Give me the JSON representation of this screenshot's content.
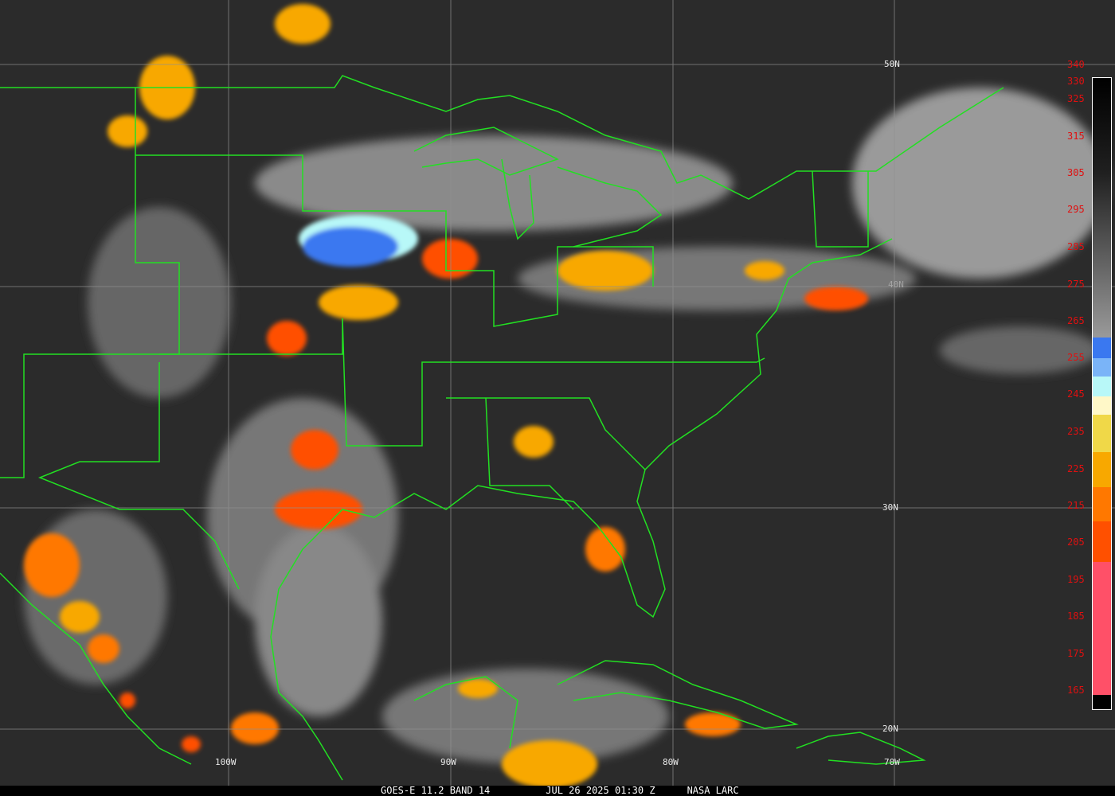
{
  "footer": {
    "satellite": "GOES-E 11.2 BAND 14",
    "datetime": "JUL 26 2025 01:30 Z",
    "source": "NASA LARC"
  },
  "grid_labels": {
    "lat_50": "50N",
    "lat_40": "40N",
    "lat_30": "30N",
    "lat_20": "20N",
    "lon_100": "100W",
    "lon_90": "90W",
    "lon_80": "80W",
    "lon_70": "70W"
  },
  "colorbar": {
    "unit_values": [
      "340",
      "330",
      "325",
      "315",
      "305",
      "295",
      "285",
      "275",
      "265",
      "255",
      "245",
      "235",
      "225",
      "215",
      "205",
      "195",
      "185",
      "175",
      "165"
    ],
    "colors": {
      "cold_black": "#000000",
      "warm_gray": "#9a9a9a",
      "blue": "#3a78f0",
      "light_blue": "#7ab4f8",
      "cyan": "#b8f8f8",
      "pale_yellow": "#fff8c8",
      "yellow": "#f0d848",
      "orange": "#f8a800",
      "dark_orange": "#ff7800",
      "red_orange": "#ff5000",
      "pink": "#ff5068"
    }
  },
  "map_colors": {
    "background": "#2b2b2b",
    "boundaries": "#22e022",
    "gridlines": "#909090"
  }
}
